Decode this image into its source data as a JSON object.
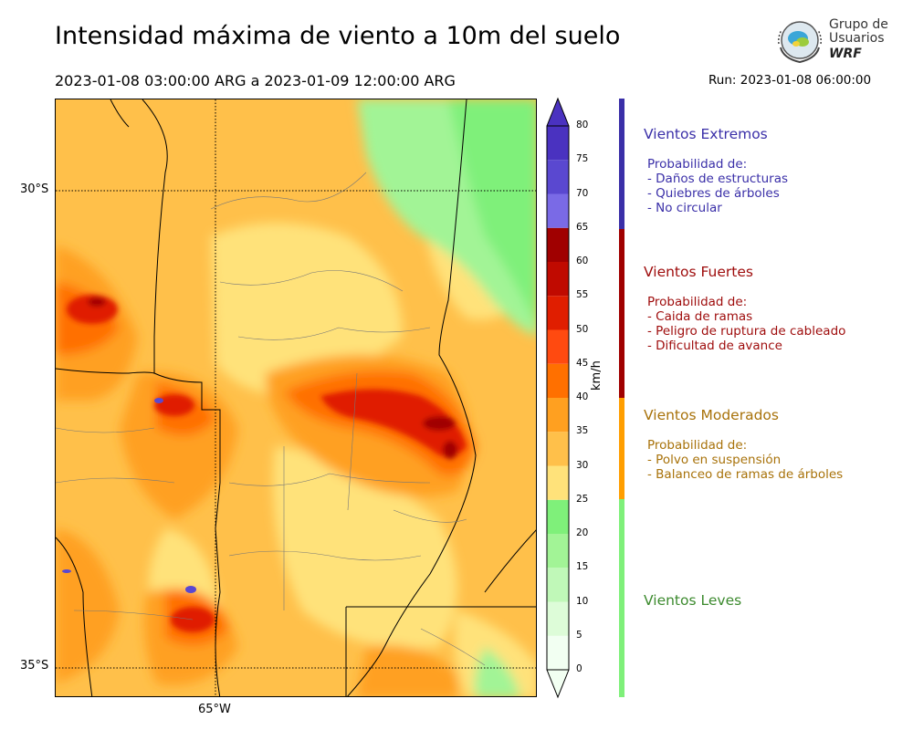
{
  "header": {
    "title": "Intensidad máxima de viento a 10m del suelo",
    "period": "2023-01-08 03:00:00 ARG  a  2023-01-09 12:00:00 ARG",
    "run": "Run: 2023-01-08 06:00:00"
  },
  "logo": {
    "line1": "Grupo de",
    "line2": "Usuarios",
    "line3": "WRF"
  },
  "map": {
    "lat_labels": [
      "30°S",
      "35°S"
    ],
    "lon_labels": [
      "65°W"
    ]
  },
  "colorbar": {
    "unit": "km/h",
    "ticks": [
      "0",
      "5",
      "10",
      "15",
      "20",
      "25",
      "30",
      "35",
      "40",
      "45",
      "50",
      "55",
      "60",
      "65",
      "70",
      "75",
      "80"
    ],
    "colors": [
      "#f2fff2",
      "#ddfcd8",
      "#c0f8b8",
      "#a2f496",
      "#7ff07a",
      "#ffe27a",
      "#ffc04a",
      "#ffa020",
      "#ff7000",
      "#ff4a10",
      "#e01e00",
      "#c00a00",
      "#a00000",
      "#7a6ae6",
      "#5a48d0",
      "#4a32c0"
    ]
  },
  "categories": [
    {
      "title": "Vientos Extremos",
      "color": "#3a2fa8",
      "lines": [
        "Probabilidad de:",
        "- Daños de estructuras",
        "- Quiebres de árboles",
        "- No circular"
      ]
    },
    {
      "title": "Vientos Fuertes",
      "color": "#9e0b0b",
      "lines": [
        "Probabilidad de:",
        "- Caida de ramas",
        "- Peligro de ruptura de cableado",
        "- Dificultad de avance"
      ]
    },
    {
      "title": "Vientos Moderados",
      "color": "#a8720a",
      "lines": [
        "Probabilidad de:",
        "- Polvo en suspensión",
        "- Balanceo de ramas de árboles"
      ]
    },
    {
      "title": "Vientos Leves",
      "color": "#3c8a2e",
      "lines": []
    }
  ],
  "category_bar_colors": [
    "#3a2fa8",
    "#a00000",
    "#ff9e00",
    "#7ff07a"
  ]
}
